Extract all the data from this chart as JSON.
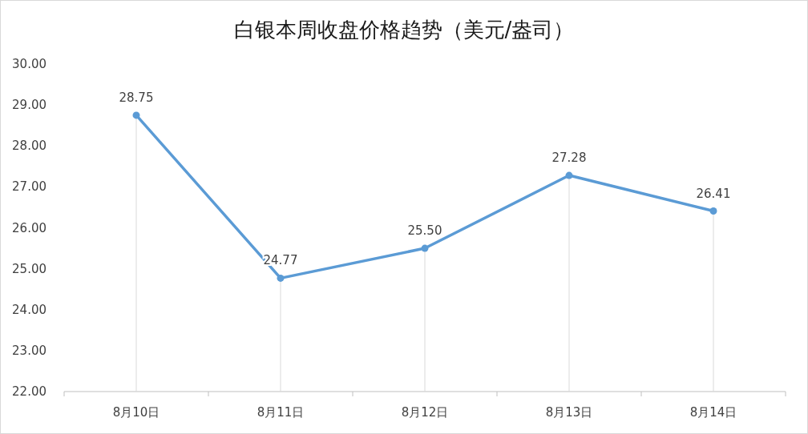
{
  "chart_data": {
    "type": "line",
    "title": "白银本周收盘价格趋势（美元/盎司）",
    "categories": [
      "8月10日",
      "8月11日",
      "8月12日",
      "8月13日",
      "8月14日"
    ],
    "series": [
      {
        "color": "#5b9bd5",
        "values": [
          28.75,
          24.77,
          25.5,
          27.28,
          26.41
        ],
        "value_labels": [
          "28.75",
          "24.77",
          "25.50",
          "27.28",
          "26.41"
        ]
      }
    ],
    "ylim": [
      22,
      30
    ],
    "yticks": [
      {
        "value": 22,
        "label": "22.00"
      },
      {
        "value": 23,
        "label": "23.00"
      },
      {
        "value": 24,
        "label": "24.00"
      },
      {
        "value": 25,
        "label": "25.00"
      },
      {
        "value": 26,
        "label": "26.00"
      },
      {
        "value": 27,
        "label": "27.00"
      },
      {
        "value": 28,
        "label": "28.00"
      },
      {
        "value": 29,
        "label": "29.00"
      },
      {
        "value": 30,
        "label": "30.00"
      }
    ],
    "marker": "circle",
    "line_style": "solid",
    "grid": "x"
  }
}
